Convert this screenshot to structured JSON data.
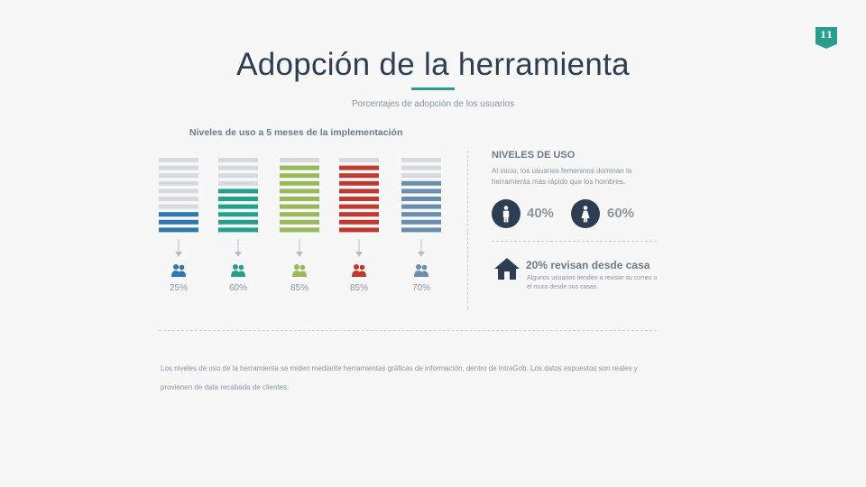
{
  "page_number": "11",
  "title": "Adopción de la herramienta",
  "subtitle": "Porcentajes de adopción de los usuarios",
  "chart_data": {
    "type": "bar",
    "title": "Niveles de uso a 5 meses de la implementación",
    "segments_per_bar": 10,
    "categories": [
      "",
      "",
      "",
      "",
      ""
    ],
    "values": [
      25,
      60,
      85,
      85,
      70
    ],
    "labels": [
      "25%",
      "60%",
      "85%",
      "85%",
      "70%"
    ],
    "colors": [
      "#2f78ae",
      "#25a08c",
      "#9ab85c",
      "#c0392f",
      "#6a8db0"
    ],
    "empty_color": "#d6dadd",
    "ylim": [
      0,
      100
    ]
  },
  "niveles": {
    "title": "NIVELES DE USO",
    "desc": "Al inicio, los usuarios femeninos dominan la herramienta más rápido que los hombres.",
    "male_pct": "40%",
    "female_pct": "60%",
    "male_icon": "male-icon",
    "female_icon": "female-icon"
  },
  "casa": {
    "icon": "house-icon",
    "title": "20% revisan desde casa",
    "desc": "Algunos usuarios tienden a revisar su correo o el muro desde sus casas."
  },
  "footnote": "Los niveles de uso de la herramienta se miden mediante herramientas gráficas de información, dentro de intraGob.  Los datos expuestos son reales y provienen de data recabada de clientes.",
  "colors": {
    "accent": "#2a9d8f",
    "dark": "#2e3e52",
    "muted": "#8a95a0"
  }
}
